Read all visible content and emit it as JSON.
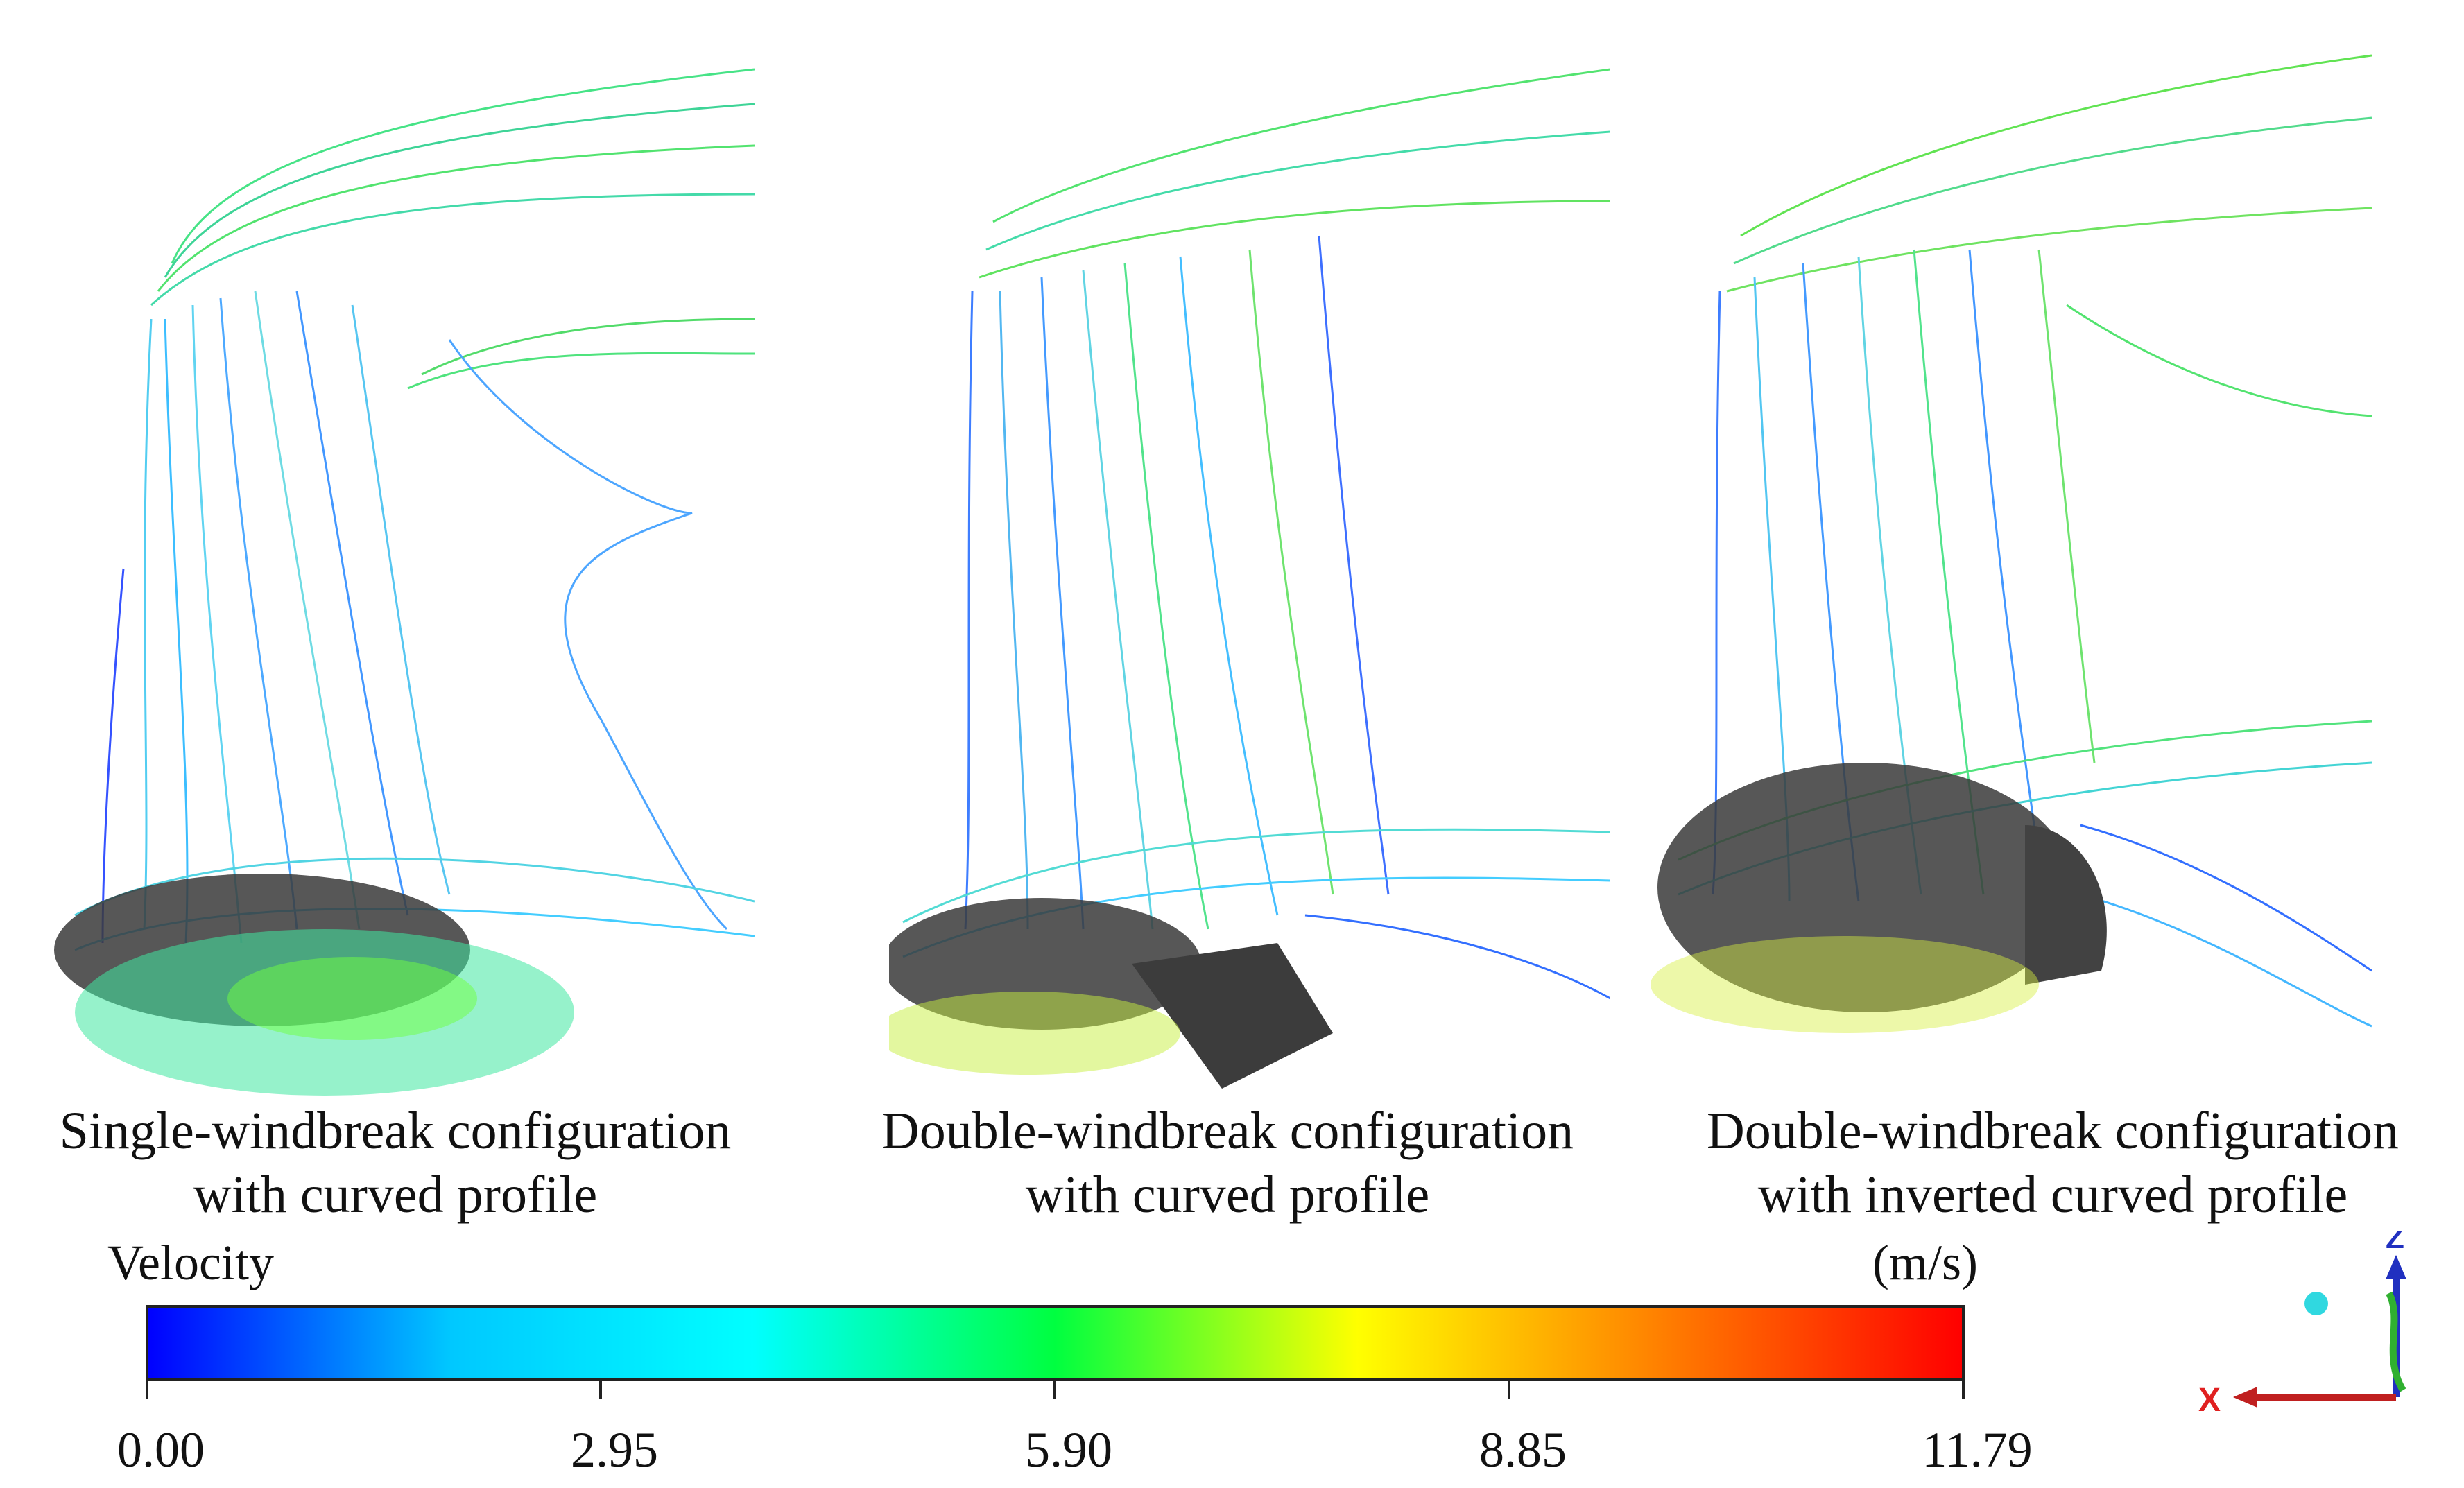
{
  "panels": [
    {
      "caption_line1": "Single-windbreak configuration",
      "caption_line2": "with curved profile"
    },
    {
      "caption_line1": "Double-windbreak configuration",
      "caption_line2": "with curved profile"
    },
    {
      "caption_line1": "Double-windbreak configuration",
      "caption_line2": "with inverted curved profile"
    }
  ],
  "colorbar": {
    "title": "Velocity",
    "unit": "(m/s)",
    "ticks": [
      "0.00",
      "2.95",
      "5.90",
      "8.85",
      "11.79"
    ],
    "min": 0.0,
    "max": 11.79,
    "colors": [
      "#0000ff",
      "#00c8ff",
      "#00ffff",
      "#00ff40",
      "#ffff00",
      "#ff8000",
      "#ff0000"
    ]
  },
  "triad": {
    "z_label": "Z",
    "x_label": "X"
  }
}
